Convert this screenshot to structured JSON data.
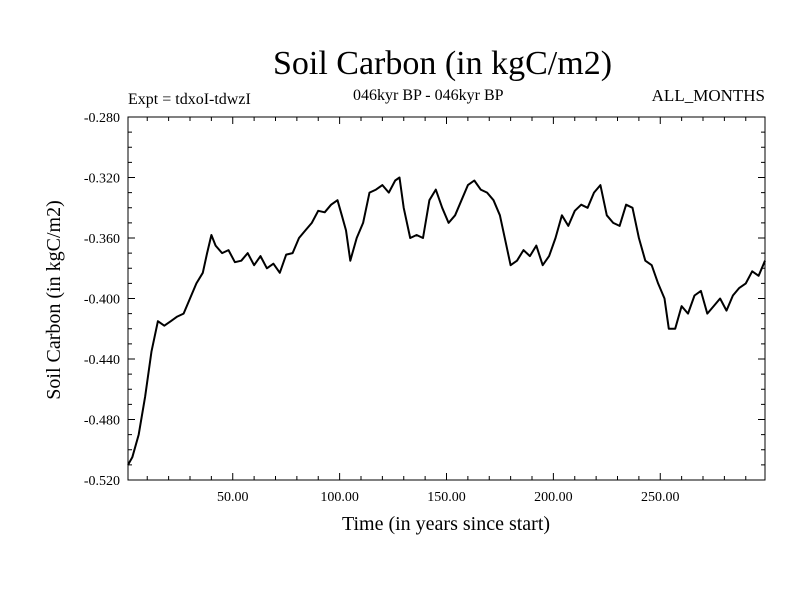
{
  "chart_data": {
    "type": "line",
    "title": "Soil Carbon (in kgC/m2)",
    "experiment": "Expt = tdxoI-tdwzI",
    "period": "046kyr BP - 046kyr BP",
    "season": "ALL_MONTHS",
    "xlabel": "Time (in years since start)",
    "ylabel": "Soil Carbon (in kgC/m2)",
    "xlim": [
      1,
      299
    ],
    "ylim": [
      -0.52,
      -0.28
    ],
    "x_ticks": [
      50,
      100,
      150,
      200,
      250
    ],
    "x_tick_labels": [
      "50.00",
      "100.00",
      "150.00",
      "200.00",
      "250.00"
    ],
    "y_ticks": [
      -0.28,
      -0.32,
      -0.36,
      -0.4,
      -0.44,
      -0.48,
      -0.52
    ],
    "y_tick_labels": [
      "-0.280",
      "-0.320",
      "-0.360",
      "-0.400",
      "-0.440",
      "-0.480",
      "-0.520"
    ],
    "grid": false,
    "series": [
      {
        "color": "#000000",
        "x": [
          1,
          3,
          6,
          9,
          12,
          15,
          18,
          21,
          24,
          27,
          30,
          33,
          36,
          38,
          40,
          42,
          45,
          48,
          51,
          54,
          57,
          60,
          63,
          66,
          69,
          72,
          75,
          78,
          81,
          84,
          87,
          90,
          93,
          96,
          99,
          101,
          103,
          105,
          108,
          111,
          114,
          117,
          120,
          123,
          126,
          128,
          130,
          133,
          136,
          139,
          142,
          145,
          148,
          151,
          154,
          157,
          160,
          163,
          166,
          169,
          172,
          175,
          178,
          180,
          183,
          186,
          189,
          192,
          195,
          198,
          201,
          204,
          207,
          210,
          213,
          216,
          219,
          222,
          225,
          228,
          231,
          234,
          237,
          240,
          243,
          246,
          249,
          252,
          254,
          257,
          260,
          263,
          266,
          269,
          272,
          275,
          278,
          281,
          284,
          287,
          290,
          293,
          296,
          299
        ],
        "y": [
          -0.51,
          -0.505,
          -0.49,
          -0.465,
          -0.435,
          -0.415,
          -0.418,
          -0.415,
          -0.412,
          -0.41,
          -0.4,
          -0.39,
          -0.383,
          -0.37,
          -0.358,
          -0.365,
          -0.37,
          -0.368,
          -0.376,
          -0.375,
          -0.37,
          -0.378,
          -0.372,
          -0.38,
          -0.377,
          -0.383,
          -0.371,
          -0.37,
          -0.36,
          -0.355,
          -0.35,
          -0.342,
          -0.343,
          -0.338,
          -0.335,
          -0.345,
          -0.355,
          -0.375,
          -0.36,
          -0.35,
          -0.33,
          -0.328,
          -0.325,
          -0.33,
          -0.322,
          -0.32,
          -0.34,
          -0.36,
          -0.358,
          -0.36,
          -0.335,
          -0.328,
          -0.34,
          -0.35,
          -0.345,
          -0.335,
          -0.325,
          -0.322,
          -0.328,
          -0.33,
          -0.335,
          -0.345,
          -0.365,
          -0.378,
          -0.375,
          -0.368,
          -0.372,
          -0.365,
          -0.378,
          -0.372,
          -0.36,
          -0.345,
          -0.352,
          -0.342,
          -0.338,
          -0.34,
          -0.33,
          -0.325,
          -0.345,
          -0.35,
          -0.352,
          -0.338,
          -0.34,
          -0.36,
          -0.375,
          -0.378,
          -0.39,
          -0.4,
          -0.42,
          -0.42,
          -0.405,
          -0.41,
          -0.398,
          -0.395,
          -0.41,
          -0.405,
          -0.4,
          -0.408,
          -0.398,
          -0.393,
          -0.39,
          -0.382,
          -0.385,
          -0.375
        ]
      }
    ]
  }
}
